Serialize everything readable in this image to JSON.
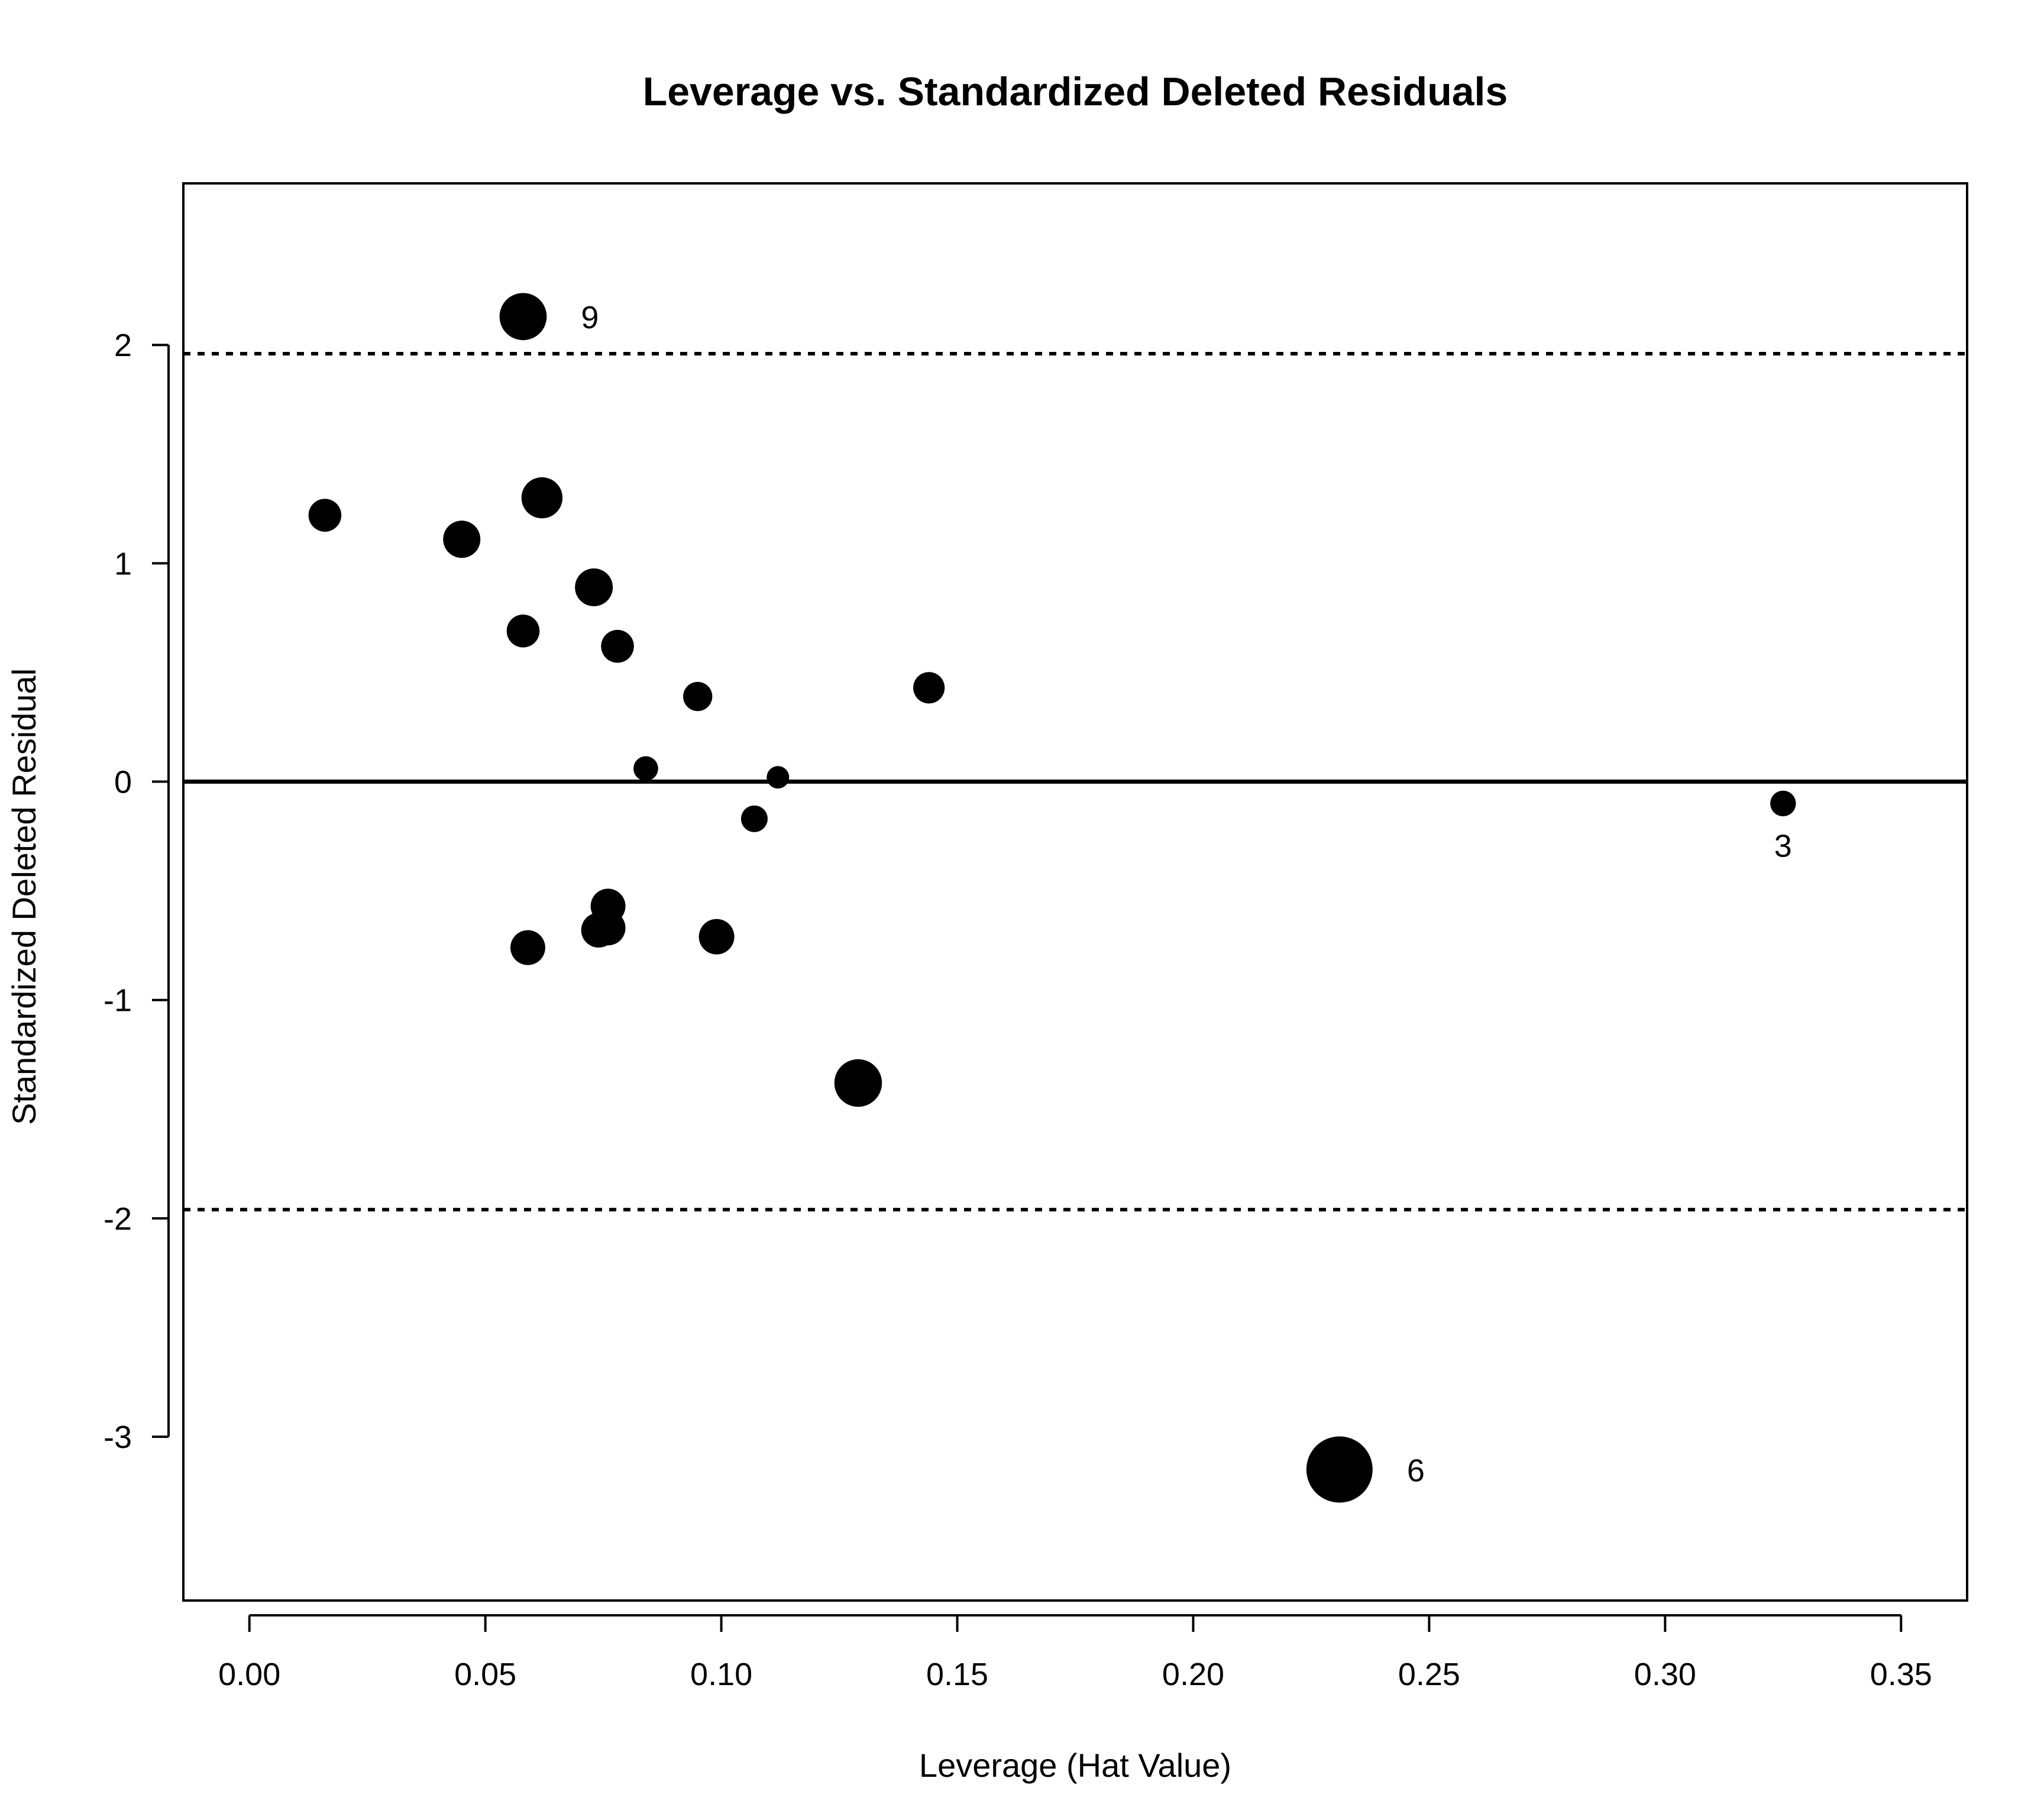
{
  "chart_data": {
    "type": "scatter",
    "title": "Leverage vs. Standardized Deleted Residuals",
    "xlabel": "Leverage (Hat Value)",
    "ylabel": "Standardized Deleted Residual",
    "xlim": [
      -0.014,
      0.364
    ],
    "ylim": [
      -3.75,
      2.74
    ],
    "xticks": [
      "0.00",
      "0.05",
      "0.10",
      "0.15",
      "0.20",
      "0.25",
      "0.30",
      "0.35"
    ],
    "yticks": [
      "-3",
      "-2",
      "-1",
      "0",
      "1",
      "2"
    ],
    "grid": false,
    "legend": "none",
    "marker_color": "#000000",
    "reference_lines": [
      {
        "y": 0,
        "style": "solid"
      },
      {
        "y": 1.96,
        "style": "dotted"
      },
      {
        "y": -1.96,
        "style": "dotted"
      }
    ],
    "size_encoding": "point size proportional to influence",
    "points": [
      {
        "x": 0.016,
        "y": 1.22,
        "size": 0.18
      },
      {
        "x": 0.045,
        "y": 1.11,
        "size": 0.25
      },
      {
        "x": 0.058,
        "y": 2.13,
        "size": 0.45,
        "label": "9"
      },
      {
        "x": 0.062,
        "y": 1.3,
        "size": 0.32
      },
      {
        "x": 0.073,
        "y": 0.89,
        "size": 0.26
      },
      {
        "x": 0.058,
        "y": 0.69,
        "size": 0.18
      },
      {
        "x": 0.078,
        "y": 0.62,
        "size": 0.18
      },
      {
        "x": 0.095,
        "y": 0.39,
        "size": 0.13
      },
      {
        "x": 0.144,
        "y": 0.43,
        "size": 0.16
      },
      {
        "x": 0.084,
        "y": 0.06,
        "size": 0.08
      },
      {
        "x": 0.112,
        "y": 0.02,
        "size": 0.06
      },
      {
        "x": 0.107,
        "y": -0.17,
        "size": 0.1
      },
      {
        "x": 0.325,
        "y": -0.1,
        "size": 0.09,
        "label": "3"
      },
      {
        "x": 0.076,
        "y": -0.57,
        "size": 0.21
      },
      {
        "x": 0.074,
        "y": -0.68,
        "size": 0.21
      },
      {
        "x": 0.076,
        "y": -0.67,
        "size": 0.21
      },
      {
        "x": 0.059,
        "y": -0.76,
        "size": 0.21
      },
      {
        "x": 0.099,
        "y": -0.71,
        "size": 0.22
      },
      {
        "x": 0.129,
        "y": -1.38,
        "size": 0.46
      },
      {
        "x": 0.231,
        "y": -3.15,
        "size": 1.0,
        "label": "6"
      }
    ]
  }
}
